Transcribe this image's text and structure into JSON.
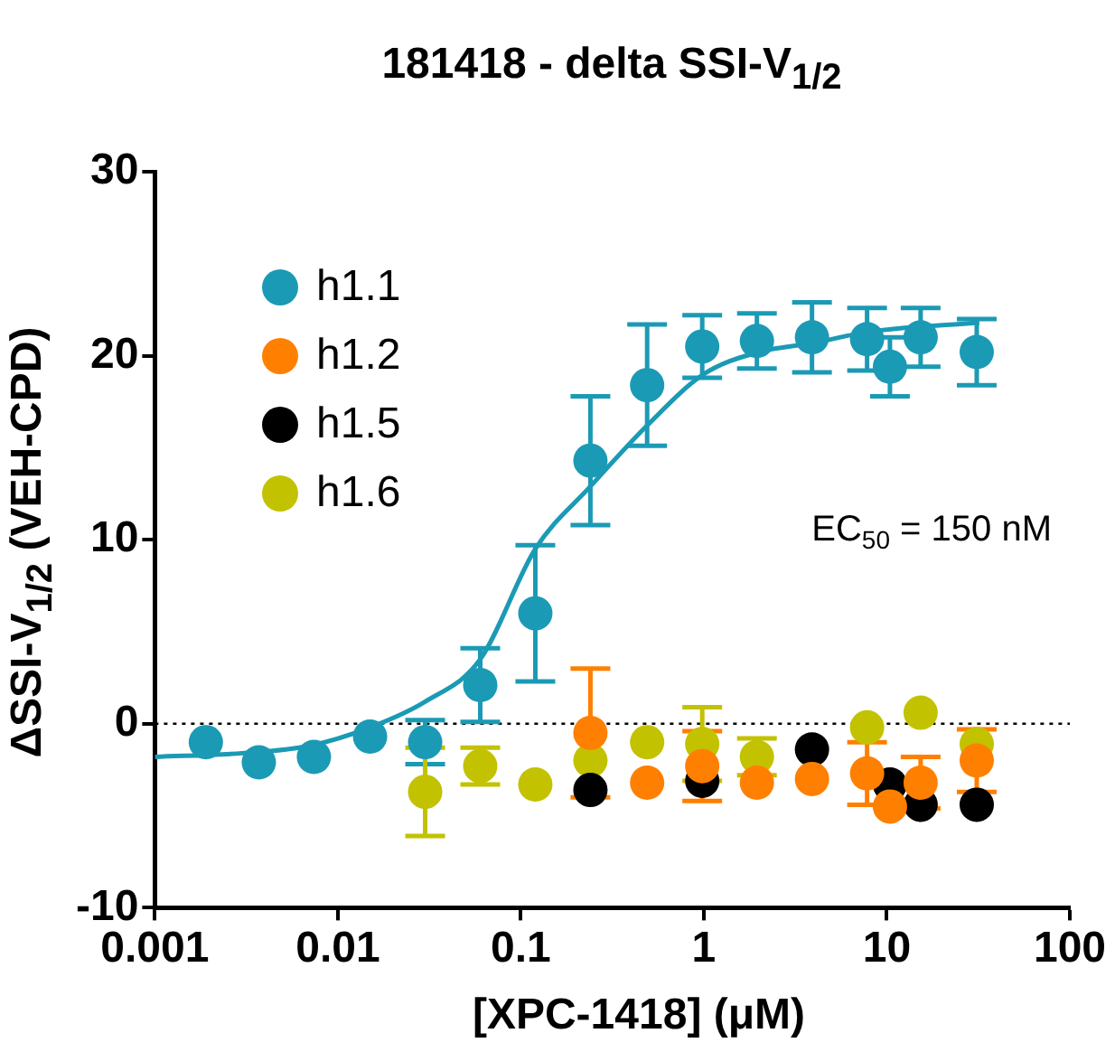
{
  "chart_data": {
    "type": "scatter",
    "title": "181418 - delta SSI-V$_{1/2}$",
    "xlabel": "[XPC-1418] (μM)",
    "ylabel": "ΔSSI-V$_{1/2}$ (VEH-CPD)",
    "log": "x",
    "xlim": [
      0.001,
      100
    ],
    "xticks": [
      0.001,
      0.01,
      0.1,
      1,
      10,
      100
    ],
    "ylim": [
      -10,
      30
    ],
    "yticks": [
      -10,
      0,
      10,
      20,
      30
    ],
    "grid": false,
    "legend": "top left",
    "marker": "circle",
    "ref_lines": [
      {
        "axis": "y",
        "value": 0,
        "line_style": "dotted",
        "color": "#000000"
      }
    ],
    "annotations": [
      "EC$_{50}$ = 150 nM"
    ],
    "series": [
      {
        "name": "h1.1",
        "color": "#1b9ab5",
        "x": [
          0.0019,
          0.0037,
          0.0074,
          0.015,
          0.03,
          0.06,
          0.12,
          0.24,
          0.49,
          0.98,
          1.95,
          3.9,
          7.8,
          10.4,
          15.3,
          31
        ],
        "values": [
          -1.0,
          -2.1,
          -1.8,
          -0.7,
          -1.0,
          2.1,
          6.0,
          14.3,
          18.4,
          20.5,
          20.8,
          21.0,
          20.9,
          19.4,
          21.0,
          20.2
        ],
        "errors": [
          null,
          null,
          null,
          null,
          1.2,
          2,
          3.7,
          3.5,
          3.3,
          1.7,
          1.5,
          1.9,
          1.7,
          1.6,
          1.6,
          1.8
        ]
      },
      {
        "type": "line",
        "marker": "none",
        "color": "#1b9ab5",
        "x": [
          0.001,
          0.003,
          0.007,
          0.015,
          0.03,
          0.06,
          0.12,
          0.24,
          0.5,
          1,
          2,
          4,
          8,
          32
        ],
        "values": [
          -1.8,
          -1.6,
          -1.2,
          -0.2,
          1.2,
          3.5,
          9.5,
          12.9,
          16.3,
          19.0,
          20.2,
          20.7,
          21.3,
          21.8
        ]
      },
      {
        "name": "h1.2",
        "color": "#ff7f00",
        "x": [
          0.24,
          0.49,
          0.98,
          1.95,
          3.9,
          7.8,
          10.4,
          15.3,
          31
        ],
        "values": [
          -0.5,
          -3.2,
          -2.3,
          -3.2,
          -3.0,
          -2.7,
          -4.5,
          -3.2,
          -2.0
        ],
        "errors": [
          3.5,
          null,
          1.9,
          null,
          null,
          1.7,
          null,
          1.4,
          1.7
        ]
      },
      {
        "name": "h1.5",
        "color": "#000000",
        "x": [
          0.24,
          0.49,
          0.98,
          1.95,
          3.9,
          7.8,
          10.4,
          15.3,
          31
        ],
        "values": [
          -3.6,
          null,
          -3.1,
          null,
          -1.4,
          null,
          -3.3,
          -4.4,
          -4.4
        ]
      },
      {
        "name": "h1.6",
        "color": "#c2c200",
        "x": [
          0.03,
          0.06,
          0.12,
          0.24,
          0.49,
          0.98,
          1.95,
          7.8,
          10.4,
          15.3,
          31
        ],
        "values": [
          -3.7,
          -2.3,
          -3.3,
          -2.0,
          -1.0,
          -1.1,
          -1.8,
          -0.2,
          null,
          0.6,
          -1.1
        ],
        "errors": [
          2.4,
          1,
          null,
          null,
          null,
          2,
          1,
          null,
          null,
          null,
          null
        ]
      }
    ]
  }
}
